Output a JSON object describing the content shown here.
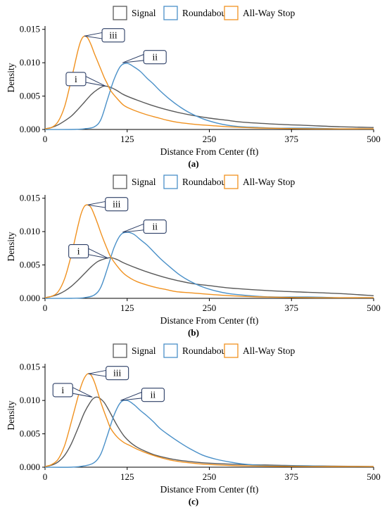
{
  "colors": {
    "Signal": "#595959",
    "Roundabout": "#4a90c8",
    "All-Way Stop": "#f0911f",
    "callout": "#2c3e66"
  },
  "chart_data": [
    {
      "type": "line",
      "caption": "(a)",
      "xlabel": "Distance From Center (ft)",
      "ylabel": "Density",
      "xlim": [
        0,
        500
      ],
      "ylim": [
        0,
        0.0155
      ],
      "xticks": [
        "0",
        "125",
        "250",
        "375",
        "500"
      ],
      "yticks": [
        "0.000",
        "0.005",
        "0.010",
        "0.015"
      ],
      "legend": {
        "placement": "top",
        "entries": [
          "Signal",
          "Roundabout",
          "All-Way Stop"
        ]
      },
      "grid": false,
      "series": [
        {
          "name": "Signal",
          "x": [
            0,
            10,
            20,
            30,
            40,
            50,
            60,
            70,
            80,
            90,
            100,
            110,
            120,
            140,
            160,
            180,
            200,
            225,
            250,
            275,
            300,
            350,
            400,
            450,
            500
          ],
          "y": [
            0.0001,
            0.0003,
            0.0007,
            0.0013,
            0.002,
            0.003,
            0.0041,
            0.0052,
            0.006,
            0.0065,
            0.0063,
            0.0058,
            0.0052,
            0.0044,
            0.0037,
            0.0031,
            0.0026,
            0.0021,
            0.0017,
            0.0014,
            0.0011,
            0.0008,
            0.0006,
            0.0004,
            0.0003
          ]
        },
        {
          "name": "Roundabout",
          "x": [
            0,
            40,
            60,
            75,
            85,
            95,
            105,
            115,
            125,
            135,
            145,
            155,
            165,
            175,
            190,
            205,
            220,
            240,
            260,
            280,
            300,
            325,
            350,
            400,
            450,
            500
          ],
          "y": [
            0,
            0,
            0.0001,
            0.0004,
            0.0015,
            0.0045,
            0.0075,
            0.0095,
            0.0099,
            0.0094,
            0.0087,
            0.0077,
            0.0068,
            0.0058,
            0.0045,
            0.0034,
            0.0025,
            0.0016,
            0.001,
            0.0006,
            0.0004,
            0.0003,
            0.0002,
            0.0002,
            0.0001,
            0.0001
          ]
        },
        {
          "name": "All-Way Stop",
          "x": [
            0,
            10,
            20,
            30,
            40,
            50,
            55,
            60,
            65,
            70,
            75,
            80,
            85,
            90,
            95,
            100,
            110,
            120,
            130,
            140,
            155,
            170,
            185,
            200,
            225,
            250,
            300,
            400,
            500
          ],
          "y": [
            0.0001,
            0.0003,
            0.0012,
            0.0035,
            0.0075,
            0.0118,
            0.0134,
            0.014,
            0.0137,
            0.0127,
            0.0114,
            0.0102,
            0.009,
            0.0078,
            0.0068,
            0.0058,
            0.0046,
            0.0036,
            0.0031,
            0.0027,
            0.0022,
            0.0018,
            0.0014,
            0.0011,
            0.0008,
            0.0006,
            0.0003,
            0.0001,
            0.0001
          ]
        }
      ],
      "annotations": [
        {
          "label": "iii",
          "series": "All-Way Stop",
          "x": 60,
          "y": 0.014
        },
        {
          "label": "ii",
          "series": "Roundabout",
          "x": 118,
          "y": 0.01
        },
        {
          "label": "i",
          "series": "Signal",
          "x": 92,
          "y": 0.0065
        }
      ]
    },
    {
      "type": "line",
      "caption": "(b)",
      "xlabel": "Distance From Center (ft)",
      "ylabel": "Density",
      "xlim": [
        0,
        500
      ],
      "ylim": [
        0,
        0.0155
      ],
      "xticks": [
        "0",
        "125",
        "250",
        "375",
        "500"
      ],
      "yticks": [
        "0.000",
        "0.005",
        "0.010",
        "0.015"
      ],
      "legend": {
        "placement": "top",
        "entries": [
          "Signal",
          "Roundabout",
          "All-Way Stop"
        ]
      },
      "grid": false,
      "series": [
        {
          "name": "Signal",
          "x": [
            0,
            10,
            20,
            30,
            40,
            50,
            60,
            70,
            80,
            90,
            100,
            110,
            120,
            140,
            160,
            180,
            200,
            225,
            250,
            275,
            300,
            350,
            400,
            450,
            500
          ],
          "y": [
            0.0001,
            0.0003,
            0.0006,
            0.0011,
            0.0018,
            0.0027,
            0.0037,
            0.0047,
            0.0055,
            0.0059,
            0.0061,
            0.0058,
            0.0053,
            0.0045,
            0.0038,
            0.0032,
            0.0027,
            0.0022,
            0.0019,
            0.0016,
            0.0014,
            0.0011,
            0.0009,
            0.0007,
            0.0004
          ]
        },
        {
          "name": "Roundabout",
          "x": [
            0,
            40,
            60,
            75,
            85,
            95,
            105,
            115,
            125,
            135,
            145,
            155,
            165,
            175,
            190,
            205,
            220,
            240,
            260,
            280,
            300,
            325,
            350,
            400,
            450,
            500
          ],
          "y": [
            0,
            0,
            0.0001,
            0.0005,
            0.0017,
            0.0045,
            0.0076,
            0.0095,
            0.0099,
            0.0096,
            0.0088,
            0.008,
            0.007,
            0.006,
            0.0047,
            0.0035,
            0.0026,
            0.0017,
            0.0011,
            0.0007,
            0.0005,
            0.0003,
            0.0002,
            0.0002,
            0.0001,
            0.0001
          ]
        },
        {
          "name": "All-Way Stop",
          "x": [
            0,
            10,
            20,
            30,
            40,
            50,
            55,
            60,
            65,
            70,
            75,
            80,
            85,
            90,
            95,
            100,
            110,
            120,
            130,
            140,
            155,
            170,
            185,
            200,
            225,
            250,
            300,
            400,
            500
          ],
          "y": [
            0.0001,
            0.0003,
            0.001,
            0.003,
            0.0065,
            0.0108,
            0.0127,
            0.0138,
            0.014,
            0.0136,
            0.0125,
            0.0112,
            0.0098,
            0.0085,
            0.0073,
            0.0062,
            0.0048,
            0.0037,
            0.003,
            0.0025,
            0.002,
            0.0016,
            0.0013,
            0.001,
            0.0008,
            0.0006,
            0.0003,
            0.0001,
            0.0001
          ]
        }
      ],
      "annotations": [
        {
          "label": "iii",
          "series": "All-Way Stop",
          "x": 65,
          "y": 0.014
        },
        {
          "label": "ii",
          "series": "Roundabout",
          "x": 118,
          "y": 0.0099
        },
        {
          "label": "i",
          "series": "Signal",
          "x": 96,
          "y": 0.006
        }
      ]
    },
    {
      "type": "line",
      "caption": "(c)",
      "xlabel": "Distance From Center (ft)",
      "ylabel": "Density",
      "xlim": [
        0,
        500
      ],
      "ylim": [
        0,
        0.0155
      ],
      "xticks": [
        "0",
        "125",
        "250",
        "375",
        "500"
      ],
      "yticks": [
        "0.000",
        "0.005",
        "0.010",
        "0.015"
      ],
      "legend": {
        "placement": "top",
        "entries": [
          "Signal",
          "Roundabout",
          "All-Way Stop"
        ]
      },
      "grid": false,
      "series": [
        {
          "name": "Signal",
          "x": [
            0,
            10,
            20,
            30,
            40,
            50,
            60,
            70,
            75,
            80,
            85,
            90,
            95,
            100,
            110,
            120,
            130,
            140,
            150,
            165,
            180,
            200,
            225,
            250,
            300,
            350,
            400,
            500
          ],
          "y": [
            0.0001,
            0.0003,
            0.0008,
            0.0018,
            0.0035,
            0.0058,
            0.0082,
            0.0099,
            0.0104,
            0.0105,
            0.0102,
            0.0097,
            0.0089,
            0.008,
            0.0062,
            0.0047,
            0.0037,
            0.003,
            0.0025,
            0.0019,
            0.0015,
            0.0011,
            0.0008,
            0.0006,
            0.0004,
            0.0003,
            0.0002,
            0.0001
          ]
        },
        {
          "name": "Roundabout",
          "x": [
            0,
            40,
            60,
            75,
            85,
            95,
            105,
            115,
            125,
            135,
            145,
            155,
            165,
            175,
            190,
            205,
            220,
            240,
            260,
            280,
            300,
            325,
            350,
            400,
            450,
            500
          ],
          "y": [
            0,
            0,
            0.0002,
            0.0007,
            0.002,
            0.0048,
            0.0078,
            0.0097,
            0.01,
            0.0094,
            0.0085,
            0.0077,
            0.0068,
            0.0058,
            0.0047,
            0.0037,
            0.0028,
            0.0018,
            0.0012,
            0.0008,
            0.0005,
            0.0003,
            0.0002,
            0.0002,
            0.0001,
            0.0001
          ]
        },
        {
          "name": "All-Way Stop",
          "x": [
            0,
            10,
            20,
            30,
            40,
            50,
            55,
            60,
            65,
            70,
            75,
            80,
            85,
            90,
            95,
            100,
            110,
            120,
            130,
            140,
            155,
            170,
            185,
            200,
            225,
            250,
            300,
            400,
            500
          ],
          "y": [
            0.0001,
            0.0004,
            0.0012,
            0.0033,
            0.0068,
            0.0105,
            0.0122,
            0.0134,
            0.014,
            0.0138,
            0.0128,
            0.0113,
            0.0097,
            0.0083,
            0.007,
            0.0058,
            0.0045,
            0.0037,
            0.0032,
            0.0027,
            0.0021,
            0.0016,
            0.0012,
            0.0009,
            0.0006,
            0.0004,
            0.0002,
            0.0001,
            0.0001
          ]
        }
      ],
      "annotations": [
        {
          "label": "iii",
          "series": "All-Way Stop",
          "x": 66,
          "y": 0.014
        },
        {
          "label": "ii",
          "series": "Roundabout",
          "x": 115,
          "y": 0.01
        },
        {
          "label": "i",
          "series": "Signal",
          "x": 72,
          "y": 0.0105
        }
      ]
    }
  ]
}
